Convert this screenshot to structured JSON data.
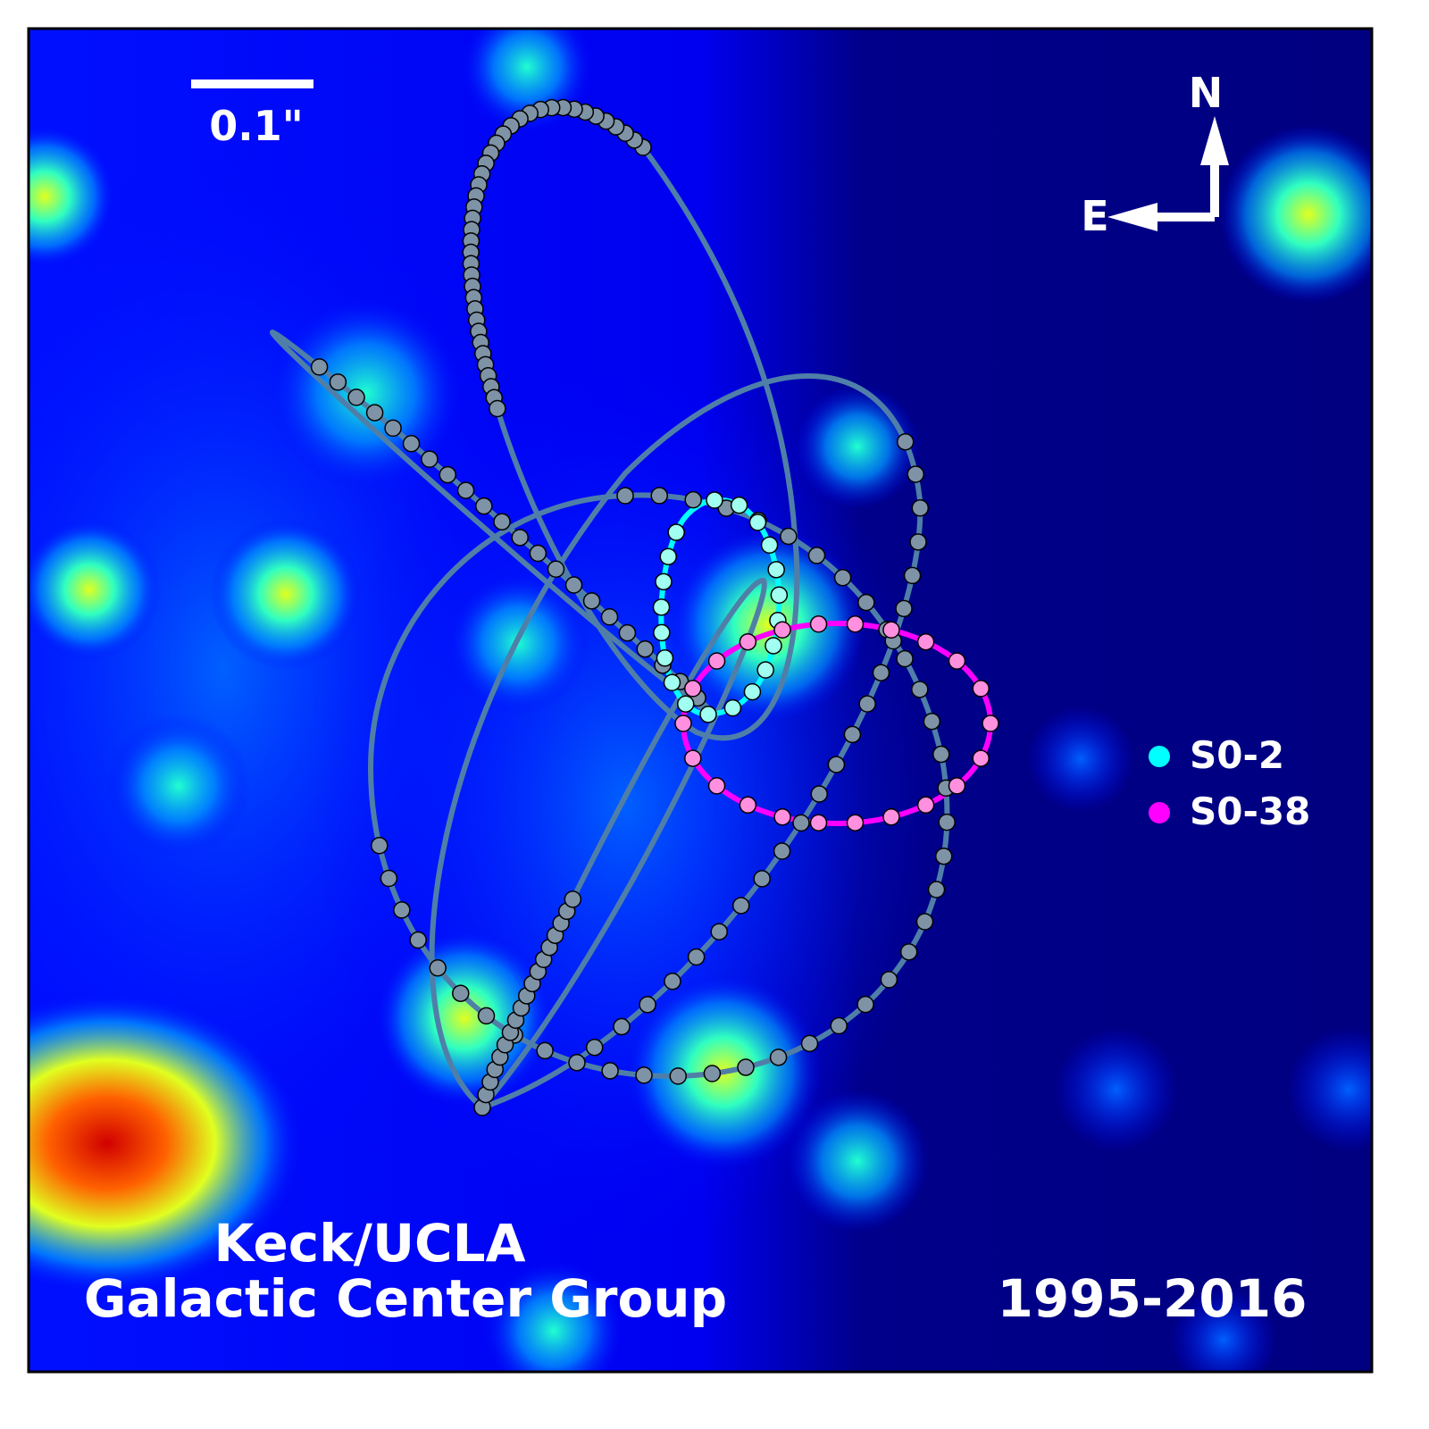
{
  "chart_data": {
    "type": "scatter",
    "title": "",
    "legend": {
      "placement": "right",
      "entries": [
        {
          "name": "S0-2",
          "color": "#00ffff"
        },
        {
          "name": "S0-38",
          "color": "#ff00ff"
        }
      ]
    },
    "other_orbits_color": "#4f7fa8",
    "other_points_color": "#7f93a6"
  },
  "scale_bar": {
    "label": "0.1\""
  },
  "compass": {
    "north": "N",
    "east": "E"
  },
  "credit": {
    "line1": "Keck/UCLA",
    "line2": "Galactic Center Group"
  },
  "date_range": "1995-2016"
}
